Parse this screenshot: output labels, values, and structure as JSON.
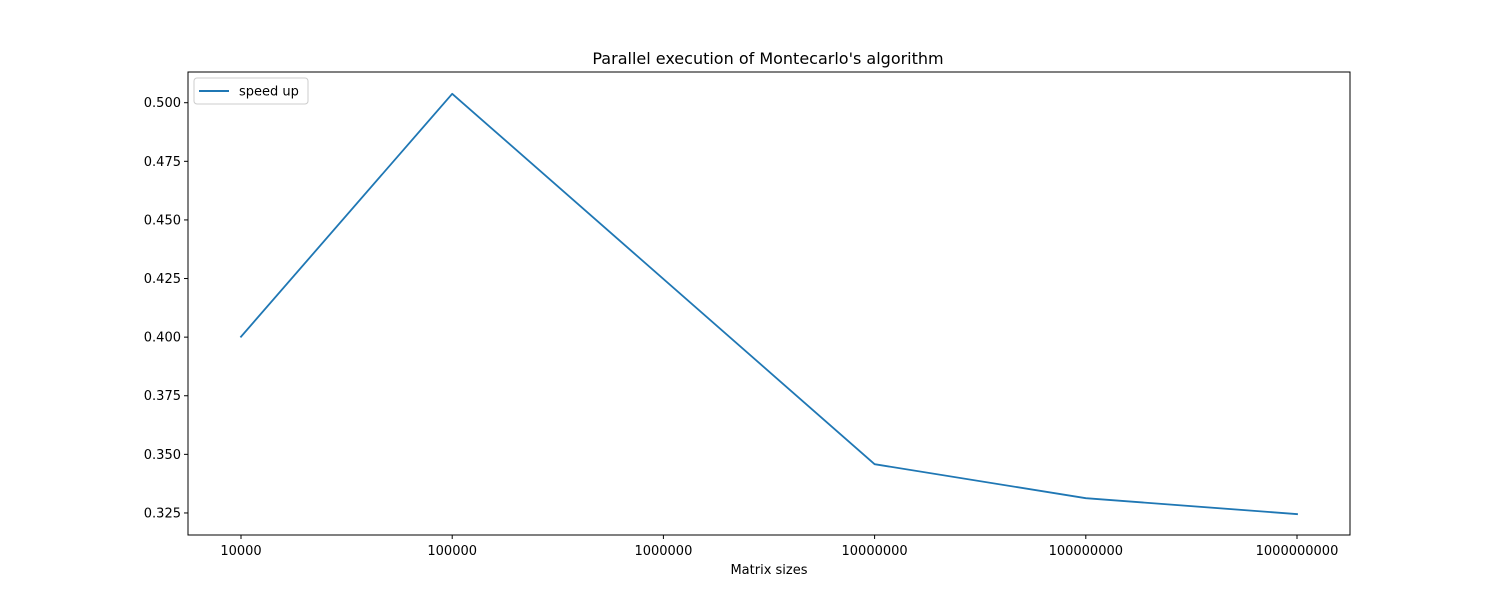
{
  "chart_data": {
    "type": "line",
    "title": "Parallel execution of Montecarlo's algorithm",
    "xlabel": "Matrix sizes",
    "ylabel": "",
    "x": [
      "10000",
      "100000",
      "1000000",
      "10000000",
      "100000000",
      "1000000000"
    ],
    "series": [
      {
        "name": "speed up",
        "color": "#1f77b4",
        "x": [
          "10000",
          "100000",
          "10000000",
          "100000000",
          "1000000000"
        ],
        "values": [
          0.4002,
          0.5038,
          0.3458,
          0.3313,
          0.3245
        ]
      }
    ],
    "yticks": [
      0.325,
      0.35,
      0.375,
      0.4,
      0.425,
      0.45,
      0.475,
      0.5
    ],
    "ytick_labels": [
      "0.325",
      "0.350",
      "0.375",
      "0.400",
      "0.425",
      "0.450",
      "0.475",
      "0.500"
    ],
    "ylim": [
      0.3156,
      0.5131
    ],
    "grid": false,
    "legend_position": "top-left"
  }
}
